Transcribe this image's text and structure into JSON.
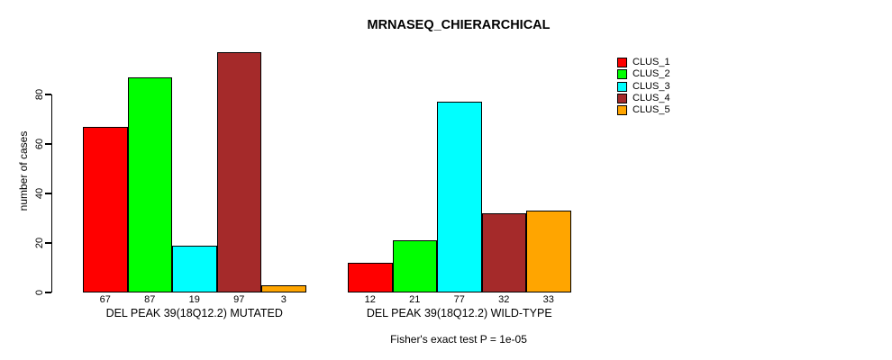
{
  "title": "MRNASEQ_CHIERARCHICAL",
  "ylabel": "number of cases",
  "footer": "Fisher's exact test P = 1e-05",
  "legend": {
    "items": [
      {
        "label": "CLUS_1",
        "color": "#FF0000"
      },
      {
        "label": "CLUS_2",
        "color": "#00FF00"
      },
      {
        "label": "CLUS_3",
        "color": "#00FFFF"
      },
      {
        "label": "CLUS_4",
        "color": "#A52A2A"
      },
      {
        "label": "CLUS_5",
        "color": "#FFA500"
      }
    ]
  },
  "chart_data": {
    "type": "bar",
    "title": "MRNASEQ_CHIERARCHICAL",
    "xlabel": "",
    "ylabel": "number of cases",
    "ylim": [
      0,
      97
    ],
    "yticks": [
      0,
      20,
      40,
      60,
      80
    ],
    "grid": false,
    "legend_position": "right",
    "bar_border_color": "#000000",
    "series_names": [
      "CLUS_1",
      "CLUS_2",
      "CLUS_3",
      "CLUS_4",
      "CLUS_5"
    ],
    "series_colors": [
      "#FF0000",
      "#00FF00",
      "#00FFFF",
      "#A52A2A",
      "#FFA500"
    ],
    "groups": [
      {
        "label": "DEL PEAK 39(18Q12.2) MUTATED",
        "values": [
          67,
          87,
          19,
          97,
          3
        ]
      },
      {
        "label": "DEL PEAK 39(18Q12.2) WILD-TYPE",
        "values": [
          12,
          21,
          77,
          32,
          33
        ]
      }
    ],
    "annotation": "Fisher's exact test P = 1e-05"
  }
}
